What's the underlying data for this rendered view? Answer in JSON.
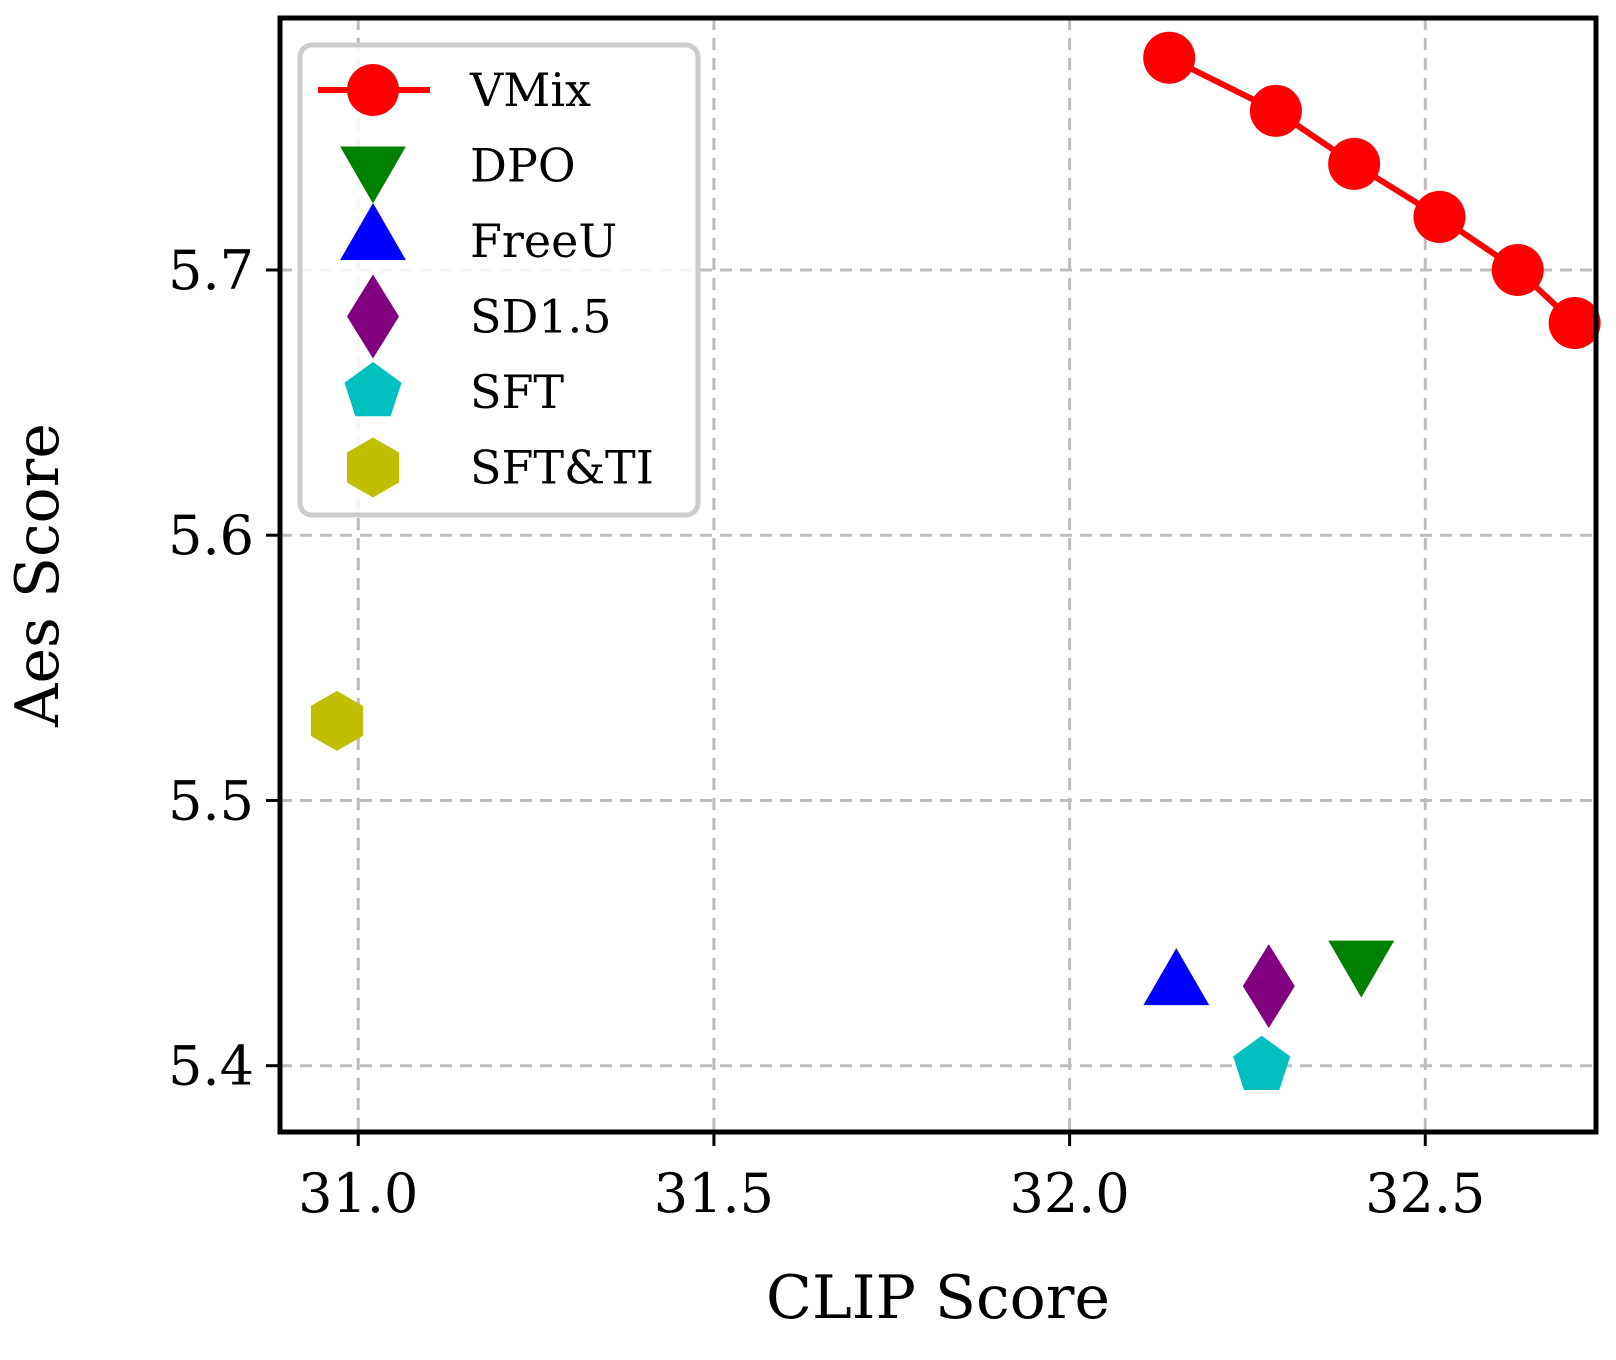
{
  "chart_data": {
    "type": "scatter",
    "title": "",
    "xlabel": "CLIP Score",
    "ylabel": "Aes Score",
    "xlim": [
      30.89,
      32.74
    ],
    "ylim": [
      5.375,
      5.795
    ],
    "xticks": [
      31.0,
      31.5,
      32.0,
      32.5
    ],
    "xtick_labels": [
      "31.0",
      "31.5",
      "32.0",
      "32.5"
    ],
    "yticks": [
      5.4,
      5.5,
      5.6,
      5.7
    ],
    "ytick_labels": [
      "5.4",
      "5.5",
      "5.6",
      "5.7"
    ],
    "grid": true,
    "legend_position": "top-left",
    "series": [
      {
        "name": "VMix",
        "marker": "circle",
        "line": true,
        "color": "#ff0000",
        "points": [
          {
            "x": 32.14,
            "y": 5.78
          },
          {
            "x": 32.29,
            "y": 5.76
          },
          {
            "x": 32.4,
            "y": 5.74
          },
          {
            "x": 32.52,
            "y": 5.72
          },
          {
            "x": 32.63,
            "y": 5.7
          },
          {
            "x": 32.71,
            "y": 5.68
          }
        ]
      },
      {
        "name": "DPO",
        "marker": "triangle-down",
        "line": false,
        "color": "#008000",
        "points": [
          {
            "x": 32.41,
            "y": 5.44
          }
        ]
      },
      {
        "name": "FreeU",
        "marker": "triangle-up",
        "line": false,
        "color": "#0000ff",
        "points": [
          {
            "x": 32.15,
            "y": 5.43
          }
        ]
      },
      {
        "name": "SD1.5",
        "marker": "diamond",
        "line": false,
        "color": "#800080",
        "points": [
          {
            "x": 32.28,
            "y": 5.43
          }
        ]
      },
      {
        "name": "SFT",
        "marker": "pentagon",
        "line": false,
        "color": "#00bfbf",
        "points": [
          {
            "x": 32.27,
            "y": 5.4
          }
        ]
      },
      {
        "name": "SFT&TI",
        "marker": "hexagon",
        "line": false,
        "color": "#bfbf00",
        "points": [
          {
            "x": 30.97,
            "y": 5.53
          }
        ]
      }
    ]
  }
}
